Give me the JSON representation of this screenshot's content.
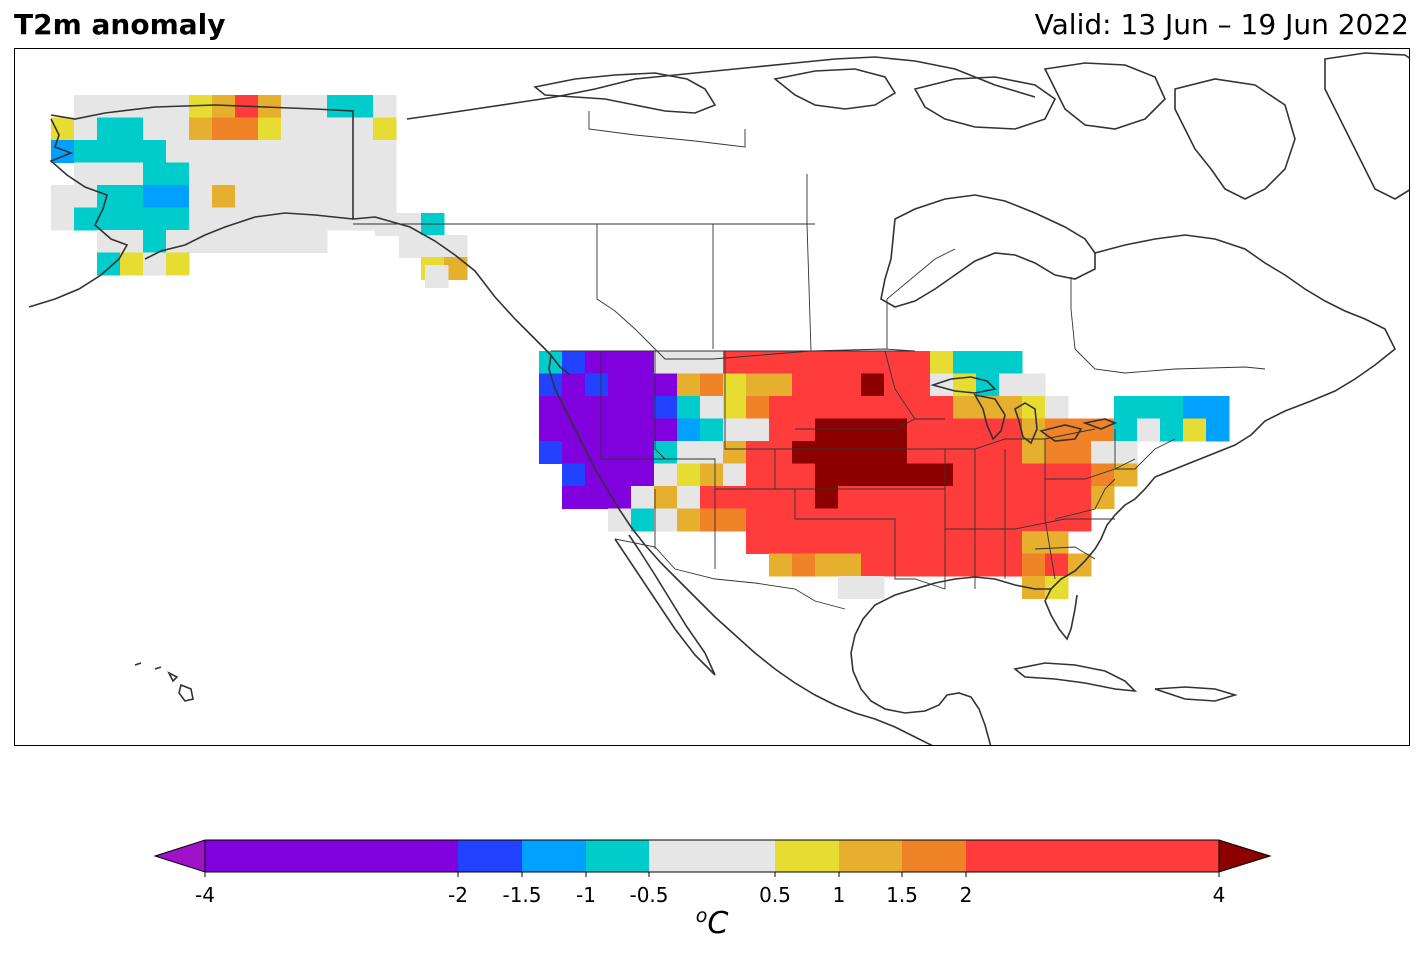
{
  "header": {
    "title": "T2m anomaly",
    "valid": "Valid: 13 Jun – 19 Jun 2022"
  },
  "colorbar": {
    "unit_base": "C",
    "unit_superscript": "o",
    "tick_labels": [
      "-4",
      "-2",
      "-1.5",
      "-1",
      "-0.5",
      "0.5",
      "1",
      "1.5",
      "2",
      "4"
    ],
    "levels": [
      -4,
      -2,
      -1.5,
      -1,
      -0.5,
      0.5,
      1,
      1.5,
      2,
      4
    ],
    "colors": {
      "under": "#9e12c8",
      "bins": [
        "#8000de",
        "#2242ff",
        "#00a1ff",
        "#00cccc",
        "#e6e6e6",
        "#e6dc32",
        "#e6af2d",
        "#f08228",
        "#ff3c3c"
      ],
      "over": "#8c0000"
    }
  }
}
